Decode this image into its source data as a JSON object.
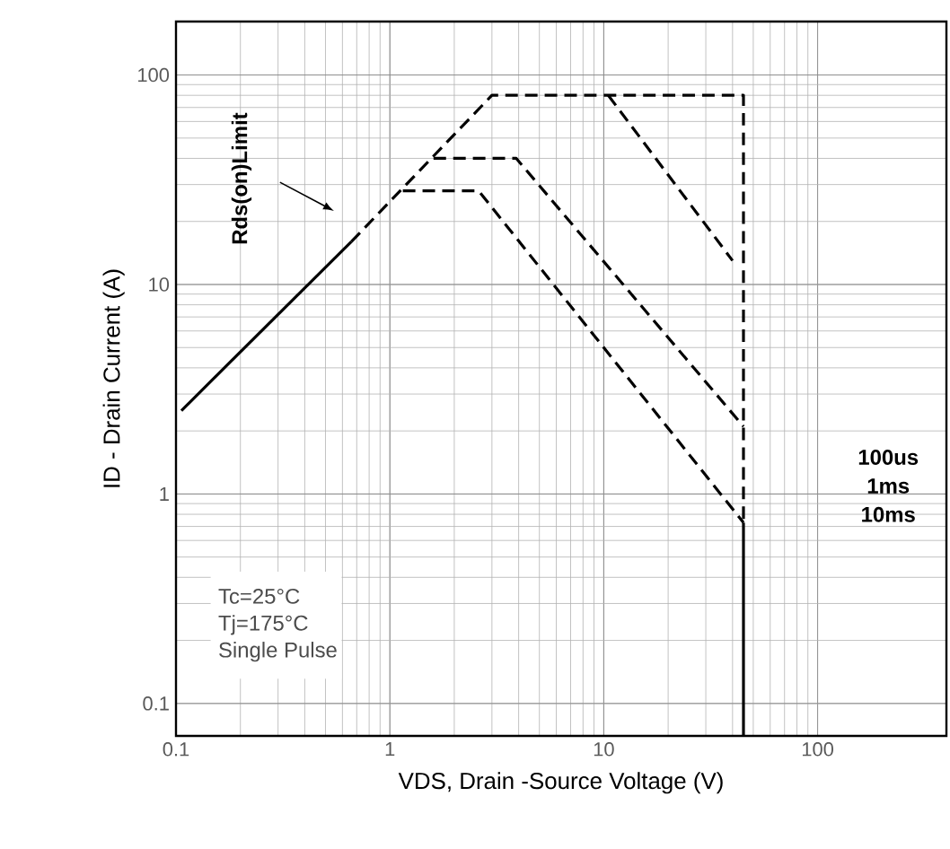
{
  "chart_data": {
    "type": "line",
    "xlabel": "VDS, Drain -Source Voltage (V)",
    "ylabel": "ID - Drain Current (A)",
    "log": "xy",
    "grid": true,
    "marker": "none",
    "xlim": [
      0.1,
      400
    ],
    "ylim": [
      0.07,
      180
    ],
    "xticks": [
      0.1,
      1,
      10,
      100
    ],
    "yticks": [
      0.1,
      1,
      10,
      100
    ],
    "series": [
      {
        "color": "#000000",
        "line_style": "solid",
        "x": [
          0.106,
          0.66
        ],
        "values": [
          2.5,
          16
        ]
      },
      {
        "color": "#000000",
        "line_style": "dashed",
        "x": [
          0.66,
          3.0,
          45,
          45
        ],
        "values": [
          16,
          80,
          80,
          0.73
        ]
      },
      {
        "color": "#000000",
        "line_style": "solid",
        "x": [
          45,
          45
        ],
        "values": [
          0.73,
          0.07
        ]
      },
      {
        "color": "#000000",
        "line_style": "dashed",
        "x": [
          10.5,
          40
        ],
        "values": [
          80,
          13
        ]
      },
      {
        "color": "#000000",
        "line_style": "dashed",
        "x": [
          1.6,
          3.9,
          45
        ],
        "values": [
          40,
          40,
          2.1
        ]
      },
      {
        "color": "#000000",
        "line_style": "dashed",
        "x": [
          1.15,
          2.6,
          45
        ],
        "values": [
          28,
          28,
          0.73
        ]
      }
    ],
    "annotations": [
      "Rds(on)Limit",
      "100us",
      "1ms",
      "10ms",
      "Tc=25°C",
      "Tj=175°C",
      "Single Pulse"
    ]
  }
}
